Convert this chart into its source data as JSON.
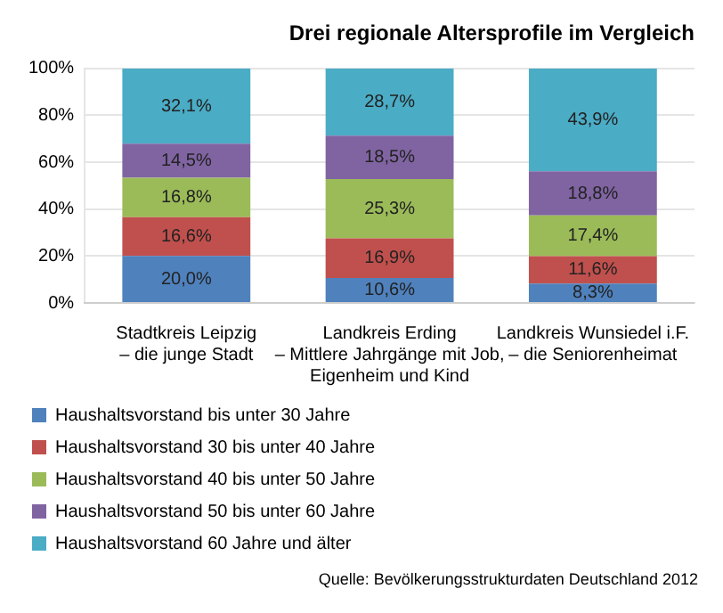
{
  "chart_data": {
    "type": "bar",
    "stacked": true,
    "title": "Drei regionale Altersprofile im Vergleich",
    "categories": [
      "Stadtkreis Leipzig\n– die junge Stadt",
      "Landkreis Erding\n– Mittlere Jahrgänge mit Job,\nEigenheim und Kind",
      "Landkreis Wunsiedel i.F.\n– die Seniorenheimat"
    ],
    "series": [
      {
        "name": "Haushaltsvorstand bis unter 30 Jahre",
        "color": "#4f81bd",
        "values": [
          20.0,
          10.6,
          8.3
        ],
        "value_labels": [
          "20,0%",
          "10,6%",
          "8,3%"
        ]
      },
      {
        "name": "Haushaltsvorstand 30 bis unter 40 Jahre",
        "color": "#c0504d",
        "values": [
          16.6,
          16.9,
          11.6
        ],
        "value_labels": [
          "16,6%",
          "16,9%",
          "11,6%"
        ]
      },
      {
        "name": "Haushaltsvorstand 40 bis unter 50 Jahre",
        "color": "#9bbb59",
        "values": [
          16.8,
          25.3,
          17.4
        ],
        "value_labels": [
          "16,8%",
          "25,3%",
          "17,4%"
        ]
      },
      {
        "name": "Haushaltsvorstand 50 bis unter 60 Jahre",
        "color": "#8064a2",
        "values": [
          14.5,
          18.5,
          18.8
        ],
        "value_labels": [
          "14,5%",
          "18,5%",
          "18,8%"
        ]
      },
      {
        "name": "Haushaltsvorstand 60 Jahre und älter",
        "color": "#4bacc6",
        "values": [
          32.1,
          28.7,
          43.9
        ],
        "value_labels": [
          "32,1%",
          "28,7%",
          "43,9%"
        ]
      }
    ],
    "ylim": [
      0,
      100
    ],
    "yticks": [
      {
        "value": 0,
        "label": "0%"
      },
      {
        "value": 20,
        "label": "20%"
      },
      {
        "value": 40,
        "label": "40%"
      },
      {
        "value": 60,
        "label": "60%"
      },
      {
        "value": 80,
        "label": "80%"
      },
      {
        "value": 100,
        "label": "100%"
      }
    ],
    "grid": "y",
    "legend": "bottom",
    "annotations": [
      "Quelle: Bevölkerungsstrukturdaten Deutschland 2012"
    ]
  }
}
